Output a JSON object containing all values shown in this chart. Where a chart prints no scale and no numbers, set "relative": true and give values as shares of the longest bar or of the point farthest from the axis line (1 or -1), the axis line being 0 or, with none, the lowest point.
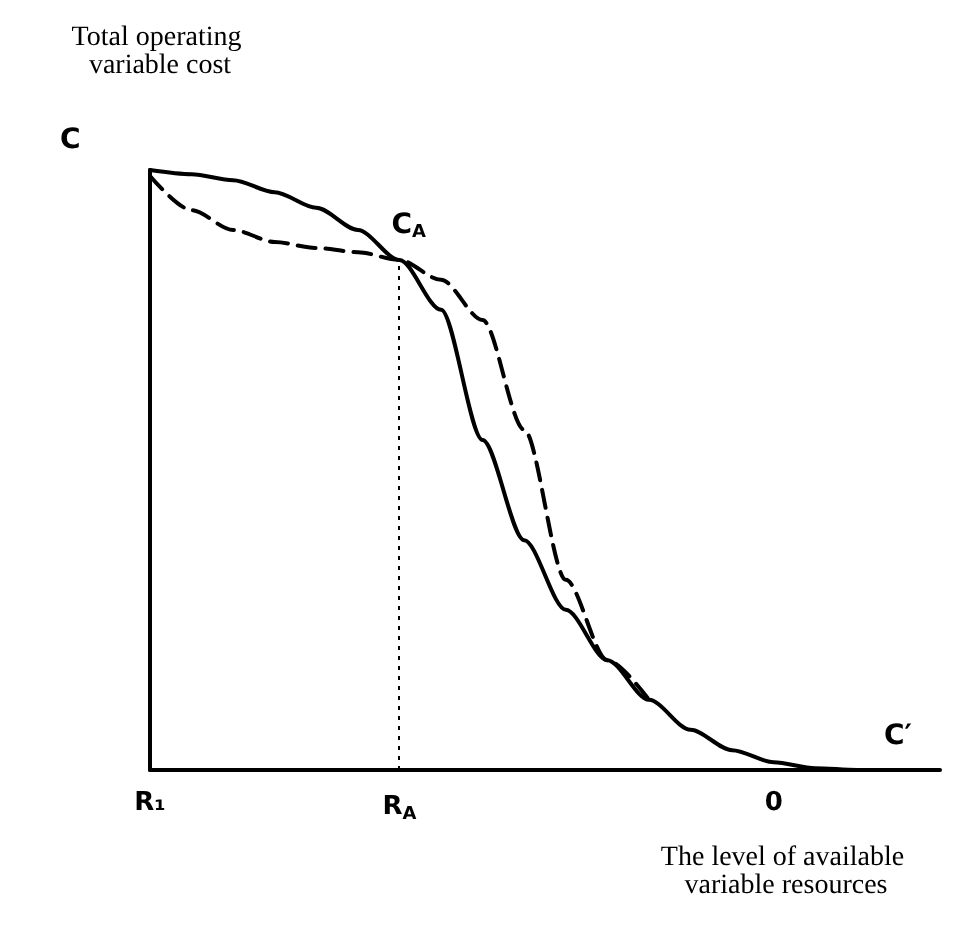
{
  "chart_data": {
    "type": "line",
    "relative": true,
    "xlabel": "The level of available variable resources",
    "ylabel": "Total operating variable cost",
    "categories": [
      "R₁",
      null,
      null,
      null,
      null,
      null,
      "R$_{A}$",
      null,
      null,
      null,
      null,
      null,
      null,
      null,
      null,
      "0",
      null,
      null,
      null,
      null
    ],
    "series": [
      {
        "color": "#000000",
        "line_style": "solid",
        "values": [
          1.0,
          0.993,
          0.983,
          0.963,
          0.937,
          0.9,
          0.85,
          0.767,
          0.55,
          0.383,
          0.267,
          0.183,
          0.117,
          0.067,
          0.033,
          0.013,
          0.003,
          0,
          0,
          null
        ]
      },
      {
        "color": "#000000",
        "line_style": "dashed",
        "values": [
          0.99,
          0.933,
          0.9,
          0.88,
          0.87,
          0.863,
          0.85,
          0.817,
          0.75,
          0.567,
          0.317,
          0.183,
          0.117,
          null,
          null,
          null,
          null,
          null,
          null,
          null
        ]
      }
    ],
    "ref_lines": [
      {
        "axis": "x",
        "value": "R$_{A}$",
        "line_style": "dotted",
        "color": "#000000"
      }
    ],
    "annotations": [
      "C",
      {
        "text": "C$_{A}$",
        "x": "R$_{A}$",
        "y": 0.85
      },
      "C′"
    ],
    "grid": false,
    "marker": "none"
  }
}
